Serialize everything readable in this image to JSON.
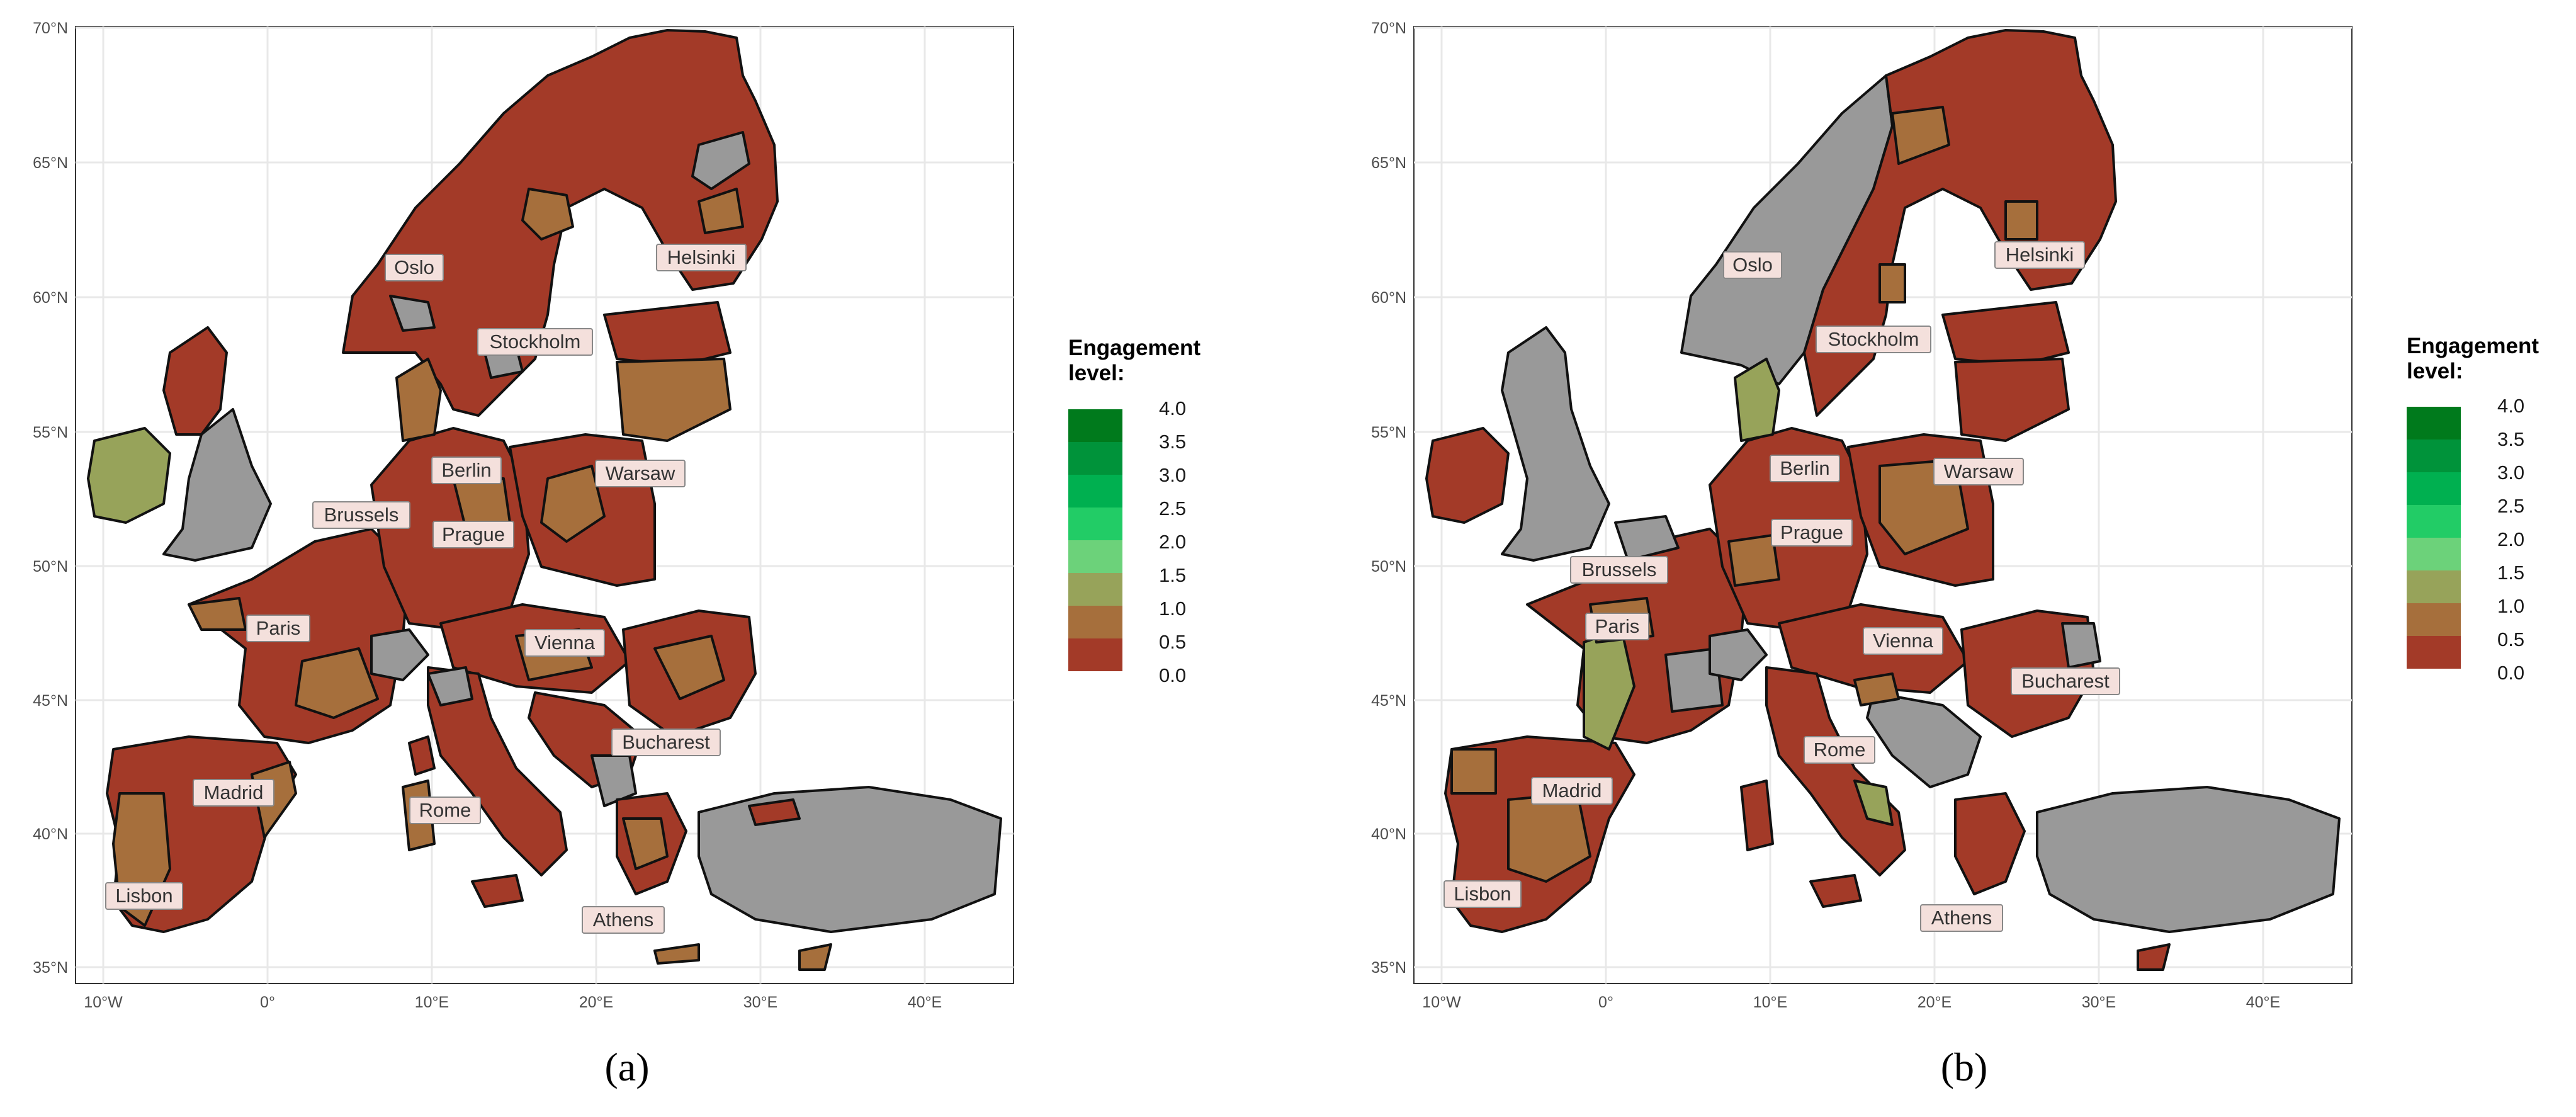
{
  "legend": {
    "title": "Engagement\nlevel:",
    "levels": [
      "4.0",
      "3.5",
      "3.0",
      "2.5",
      "2.0",
      "1.5",
      "1.0",
      "0.5",
      "0.0"
    ],
    "colors": [
      "#007a1c",
      "#00933a",
      "#00b050",
      "#22cc66",
      "#6cd27a",
      "#97a35a",
      "#a66f3c",
      "#a5713c",
      "#a33a28"
    ]
  },
  "colors": {
    "low": "#a33a28",
    "mid": "#a66f3c",
    "green": "#97a35a",
    "no_data": "#999999",
    "grid": "#e8e8e8"
  },
  "axes": {
    "x_ticks": [
      "10°W",
      "0°",
      "10°E",
      "20°E",
      "30°E",
      "40°E"
    ],
    "y_ticks": [
      "70°N",
      "65°N",
      "60°N",
      "55°N",
      "50°N",
      "45°N",
      "40°N",
      "35°N"
    ]
  },
  "panels": [
    {
      "caption": "(a)",
      "cities": [
        "Oslo",
        "Helsinki",
        "Stockholm",
        "Berlin",
        "Warsaw",
        "Brussels",
        "Prague",
        "Paris",
        "Vienna",
        "Bucharest",
        "Madrid",
        "Rome",
        "Lisbon",
        "Athens"
      ]
    },
    {
      "caption": "(b)",
      "cities": [
        "Oslo",
        "Helsinki",
        "Stockholm",
        "Berlin",
        "Warsaw",
        "Prague",
        "Brussels",
        "Paris",
        "Vienna",
        "Bucharest",
        "Rome",
        "Madrid",
        "Lisbon",
        "Athens"
      ]
    }
  ]
}
